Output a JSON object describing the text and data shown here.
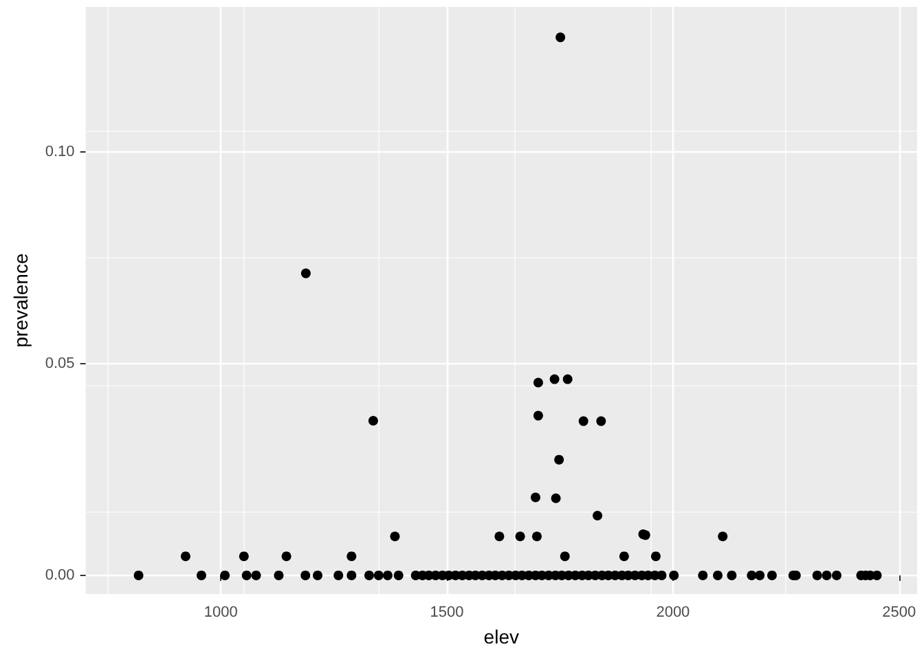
{
  "chart_data": {
    "type": "scatter",
    "xlabel": "elev",
    "ylabel": "prevalence",
    "x": [
      818,
      957,
      1009,
      1057,
      1078,
      1128,
      1187,
      1214,
      1260,
      1289,
      1328,
      1349,
      1369,
      1393,
      1431,
      1446,
      1460,
      1475,
      1490,
      1504,
      1519,
      1534,
      1549,
      1563,
      1578,
      1593,
      1607,
      1622,
      1637,
      1652,
      1666,
      1681,
      1696,
      1710,
      1725,
      1740,
      1754,
      1769,
      1784,
      1799,
      1813,
      1828,
      1843,
      1857,
      1872,
      1887,
      1901,
      1916,
      1931,
      1945,
      1960,
      1975,
      2002,
      2066,
      2099,
      2130,
      2174,
      2192,
      2219,
      2266,
      2272,
      2319,
      2340,
      2362,
      2416,
      2426,
      2436,
      2451,
      922,
      1051,
      1145,
      1289,
      1385,
      1616,
      1662,
      1699,
      1934,
      1939,
      1761,
      1892,
      1962,
      2110,
      1702,
      1738,
      1767,
      1702,
      1802,
      1841,
      1748,
      1696,
      1741,
      1833,
      1751,
      1188,
      1337
    ],
    "values": [
      0,
      0,
      0,
      0,
      0,
      0,
      0,
      0,
      0,
      0,
      0,
      0,
      0,
      0,
      0,
      0,
      0,
      0,
      0,
      0,
      0,
      0,
      0,
      0,
      0,
      0,
      0,
      0,
      0,
      0,
      0,
      0,
      0,
      0,
      0,
      0,
      0,
      0,
      0,
      0,
      0,
      0,
      0,
      0,
      0,
      0,
      0,
      0,
      0,
      0,
      0,
      0,
      0,
      0,
      0,
      0,
      0,
      0,
      0,
      0,
      0,
      0,
      0,
      0,
      0,
      0,
      0,
      0,
      0.0045,
      0.0045,
      0.0045,
      0.0045,
      0.0092,
      0.0092,
      0.0092,
      0.0092,
      0.0097,
      0.0095,
      0.0045,
      0.0045,
      0.0045,
      0.0092,
      0.0455,
      0.0463,
      0.0463,
      0.0377,
      0.0364,
      0.0364,
      0.0273,
      0.0184,
      0.0182,
      0.0141,
      0.127,
      0.0713,
      0.0365
    ],
    "color": "#000000",
    "marker": "circle",
    "grid": true,
    "xlim": [
      701,
      2540
    ],
    "xticks": [
      1000,
      1500,
      2000,
      2500
    ],
    "ylim": [
      -0.0044,
      0.1342
    ],
    "yticks": [
      {
        "value": 0,
        "label": "0.00"
      },
      {
        "value": 0.05,
        "label": "0.05"
      },
      {
        "value": 0.1,
        "label": "0.10"
      }
    ]
  }
}
